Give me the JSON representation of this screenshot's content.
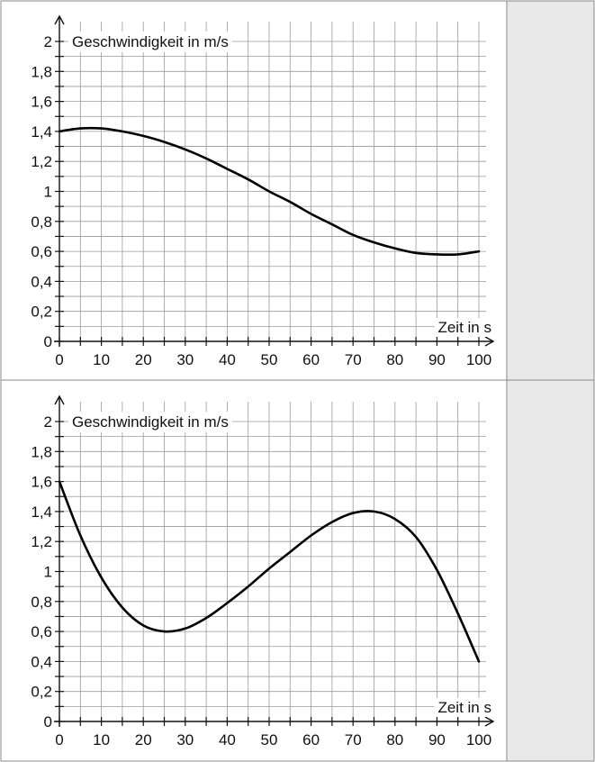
{
  "chart_data": [
    {
      "type": "line",
      "xlabel": "Zeit in s",
      "ylabel": "Geschwindigkeit in m/s",
      "xlim": [
        0,
        100
      ],
      "ylim": [
        0,
        2
      ],
      "x_ticks": [
        "0",
        "10",
        "20",
        "30",
        "40",
        "50",
        "60",
        "70",
        "80",
        "90",
        "100"
      ],
      "y_ticks": [
        "0",
        "0,2",
        "0,4",
        "0,6",
        "0,8",
        "1",
        "1,2",
        "1,4",
        "1,6",
        "1,8",
        "2"
      ],
      "grid": true,
      "series": [
        {
          "x": [
            0,
            5,
            10,
            15,
            20,
            25,
            30,
            35,
            40,
            45,
            50,
            55,
            60,
            65,
            70,
            75,
            80,
            85,
            90,
            95,
            100
          ],
          "y": [
            1.4,
            1.42,
            1.42,
            1.4,
            1.37,
            1.33,
            1.28,
            1.22,
            1.15,
            1.08,
            1.0,
            0.93,
            0.85,
            0.78,
            0.71,
            0.66,
            0.62,
            0.59,
            0.58,
            0.58,
            0.6
          ]
        }
      ]
    },
    {
      "type": "line",
      "xlabel": "Zeit in s",
      "ylabel": "Geschwindigkeit in m/s",
      "xlim": [
        0,
        100
      ],
      "ylim": [
        0,
        2
      ],
      "x_ticks": [
        "0",
        "10",
        "20",
        "30",
        "40",
        "50",
        "60",
        "70",
        "80",
        "90",
        "100"
      ],
      "y_ticks": [
        "0",
        "0,2",
        "0,4",
        "0,6",
        "0,8",
        "1",
        "1,2",
        "1,4",
        "1,6",
        "1,8",
        "2"
      ],
      "grid": true,
      "series": [
        {
          "x": [
            0,
            5,
            10,
            15,
            20,
            25,
            30,
            35,
            40,
            45,
            50,
            55,
            60,
            65,
            70,
            75,
            80,
            85,
            90,
            95,
            100
          ],
          "y": [
            1.6,
            1.24,
            0.96,
            0.76,
            0.64,
            0.6,
            0.62,
            0.69,
            0.79,
            0.9,
            1.02,
            1.13,
            1.24,
            1.33,
            1.39,
            1.4,
            1.35,
            1.23,
            1.01,
            0.72,
            0.4
          ]
        }
      ]
    }
  ]
}
